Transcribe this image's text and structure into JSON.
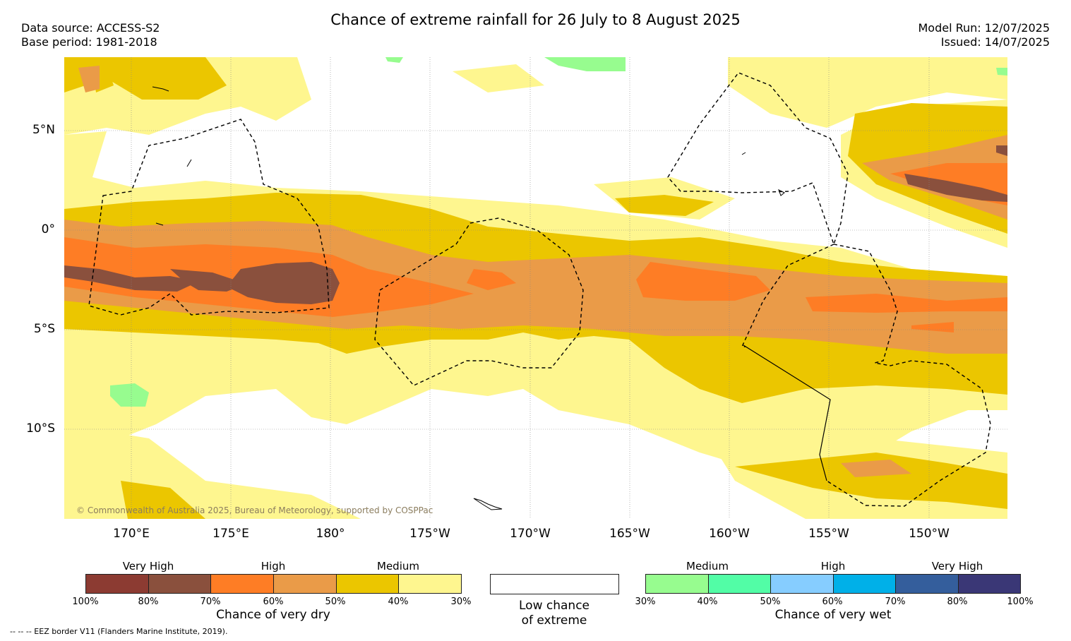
{
  "title": "Chance of extreme rainfall for 26 July to 8 August 2025",
  "meta_left": {
    "source": "Data source: ACCESS-S2",
    "base": "Base period: 1981-2018"
  },
  "meta_right": {
    "run": "Model Run: 12/07/2025",
    "issued": "Issued: 14/07/2025"
  },
  "map": {
    "lat_labels": [
      "5°N",
      "0°",
      "5°S",
      "10°S"
    ],
    "lon_labels": [
      "170°E",
      "175°E",
      "180°",
      "175°W",
      "170°W",
      "165°W",
      "160°W",
      "155°W",
      "150°W"
    ],
    "copyright": "© Commonwealth of Australia 2025, Bureau of Meteorology, supported by COSPPac",
    "colors": {
      "dry_30": "#fef68f",
      "dry_40": "#ebc600",
      "dry_50": "#ea9b48",
      "dry_60": "#fe7d25",
      "dry_70": "#8a503d",
      "wet_30": "#97fc8f",
      "ocean": "#ffffff"
    }
  },
  "legend_dry": {
    "categories": [
      "Very High",
      "High",
      "Medium"
    ],
    "ticks": [
      "100%",
      "80%",
      "70%",
      "60%",
      "50%",
      "40%",
      "30%"
    ],
    "title": "Chance of very dry",
    "colors": [
      "#8c3b32",
      "#8a503d",
      "#fe7d25",
      "#ea9b48",
      "#ebc600",
      "#fef68f"
    ]
  },
  "legend_low": {
    "line1": "Low chance",
    "line2": "of extreme"
  },
  "legend_wet": {
    "categories": [
      "Medium",
      "High",
      "Very High"
    ],
    "ticks": [
      "30%",
      "40%",
      "50%",
      "60%",
      "70%",
      "80%",
      "100%"
    ],
    "title": "Chance of very wet",
    "colors": [
      "#97fc8f",
      "#52fda6",
      "#86cdff",
      "#00b0e8",
      "#345e9c",
      "#3a3776"
    ]
  },
  "eez_note": "-- -- -- EEZ border V11 (Flanders Marine Institute, 2019)."
}
